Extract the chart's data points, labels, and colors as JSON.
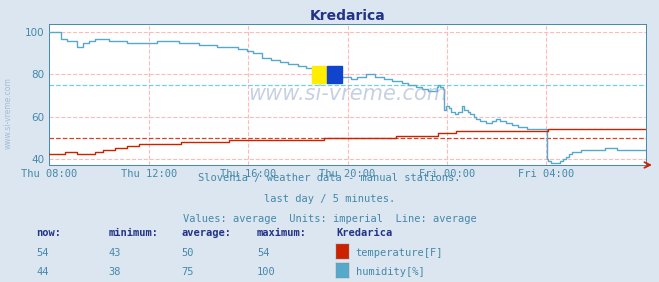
{
  "title": "Kredarica",
  "bg_color": "#dce6f0",
  "plot_bg_color": "#ffffff",
  "grid_color_h": "#ffbbbb",
  "grid_color_v": "#ffbbbb",
  "temp_color": "#cc2200",
  "humid_color": "#55aacc",
  "temp_avg_color": "#cc2200",
  "humid_avg_color": "#55ccdd",
  "ylim": [
    37,
    104
  ],
  "yticks": [
    40,
    60,
    80,
    100
  ],
  "xlabel_color": "#4488aa",
  "title_color": "#223388",
  "subtitle_lines": [
    "Slovenia / weather data - manual stations.",
    "last day / 5 minutes.",
    "Values: average  Units: imperial  Line: average"
  ],
  "xtick_labels": [
    "Thu 08:00",
    "Thu 12:00",
    "Thu 16:00",
    "Thu 20:00",
    "Fri 00:00",
    "Fri 04:00"
  ],
  "xtick_positions": [
    0.0,
    0.1667,
    0.3333,
    0.5,
    0.6667,
    0.8333
  ],
  "temp_avg": 50,
  "humid_avg": 75,
  "watermark": "www.si-vreme.com",
  "legend_title": "Kredarica",
  "legend_items": [
    {
      "label": "temperature[F]",
      "color": "#cc2200"
    },
    {
      "label": "humidity[%]",
      "color": "#55aacc"
    }
  ],
  "stats_headers": [
    "now:",
    "minimum:",
    "average:",
    "maximum:"
  ],
  "stats_temp": [
    "54",
    "43",
    "50",
    "54"
  ],
  "stats_humid": [
    "44",
    "38",
    "75",
    "100"
  ],
  "temp_data": [
    [
      0.0,
      42
    ],
    [
      0.02,
      42
    ],
    [
      0.025,
      43
    ],
    [
      0.04,
      43
    ],
    [
      0.045,
      42
    ],
    [
      0.06,
      42
    ],
    [
      0.075,
      43
    ],
    [
      0.09,
      44
    ],
    [
      0.1,
      44
    ],
    [
      0.11,
      45
    ],
    [
      0.13,
      46
    ],
    [
      0.15,
      47
    ],
    [
      0.17,
      47
    ],
    [
      0.2,
      47
    ],
    [
      0.22,
      48
    ],
    [
      0.26,
      48
    ],
    [
      0.3,
      49
    ],
    [
      0.35,
      49
    ],
    [
      0.4,
      49
    ],
    [
      0.43,
      49
    ],
    [
      0.46,
      50
    ],
    [
      0.5,
      50
    ],
    [
      0.54,
      50
    ],
    [
      0.58,
      51
    ],
    [
      0.62,
      51
    ],
    [
      0.65,
      52
    ],
    [
      0.67,
      52
    ],
    [
      0.68,
      53
    ],
    [
      0.7,
      53
    ],
    [
      0.83,
      53
    ],
    [
      0.835,
      54
    ],
    [
      1.0,
      54
    ]
  ],
  "humid_data": [
    [
      0.0,
      100
    ],
    [
      0.005,
      100
    ],
    [
      0.01,
      100
    ],
    [
      0.02,
      97
    ],
    [
      0.03,
      96
    ],
    [
      0.045,
      93
    ],
    [
      0.055,
      95
    ],
    [
      0.065,
      96
    ],
    [
      0.075,
      97
    ],
    [
      0.09,
      97
    ],
    [
      0.1,
      96
    ],
    [
      0.115,
      96
    ],
    [
      0.13,
      95
    ],
    [
      0.15,
      95
    ],
    [
      0.165,
      95
    ],
    [
      0.18,
      96
    ],
    [
      0.19,
      96
    ],
    [
      0.2,
      96
    ],
    [
      0.215,
      95
    ],
    [
      0.23,
      95
    ],
    [
      0.24,
      95
    ],
    [
      0.25,
      94
    ],
    [
      0.27,
      94
    ],
    [
      0.28,
      93
    ],
    [
      0.3,
      93
    ],
    [
      0.315,
      92
    ],
    [
      0.33,
      91
    ],
    [
      0.34,
      90
    ],
    [
      0.355,
      88
    ],
    [
      0.37,
      87
    ],
    [
      0.385,
      86
    ],
    [
      0.4,
      85
    ],
    [
      0.415,
      84
    ],
    [
      0.43,
      83
    ],
    [
      0.445,
      82
    ],
    [
      0.46,
      81
    ],
    [
      0.47,
      80
    ],
    [
      0.485,
      79
    ],
    [
      0.495,
      79
    ],
    [
      0.505,
      78
    ],
    [
      0.515,
      79
    ],
    [
      0.53,
      80
    ],
    [
      0.545,
      79
    ],
    [
      0.56,
      78
    ],
    [
      0.575,
      77
    ],
    [
      0.59,
      76
    ],
    [
      0.6,
      75
    ],
    [
      0.615,
      74
    ],
    [
      0.625,
      73
    ],
    [
      0.635,
      72
    ],
    [
      0.645,
      72
    ],
    [
      0.648,
      74
    ],
    [
      0.65,
      75
    ],
    [
      0.655,
      74
    ],
    [
      0.658,
      73
    ],
    [
      0.66,
      63
    ],
    [
      0.665,
      65
    ],
    [
      0.668,
      64
    ],
    [
      0.672,
      62
    ],
    [
      0.678,
      61
    ],
    [
      0.685,
      62
    ],
    [
      0.69,
      65
    ],
    [
      0.695,
      63
    ],
    [
      0.7,
      62
    ],
    [
      0.705,
      61
    ],
    [
      0.71,
      60
    ],
    [
      0.715,
      59
    ],
    [
      0.72,
      58
    ],
    [
      0.73,
      57
    ],
    [
      0.74,
      58
    ],
    [
      0.748,
      59
    ],
    [
      0.755,
      58
    ],
    [
      0.765,
      57
    ],
    [
      0.775,
      56
    ],
    [
      0.785,
      55
    ],
    [
      0.795,
      55
    ],
    [
      0.8,
      54
    ],
    [
      0.815,
      54
    ],
    [
      0.825,
      54
    ],
    [
      0.832,
      40
    ],
    [
      0.835,
      39
    ],
    [
      0.84,
      38
    ],
    [
      0.85,
      38
    ],
    [
      0.855,
      39
    ],
    [
      0.86,
      40
    ],
    [
      0.865,
      41
    ],
    [
      0.87,
      42
    ],
    [
      0.875,
      43
    ],
    [
      0.88,
      43
    ],
    [
      0.89,
      44
    ],
    [
      0.9,
      44
    ],
    [
      0.91,
      44
    ],
    [
      0.92,
      44
    ],
    [
      0.93,
      45
    ],
    [
      0.94,
      45
    ],
    [
      0.95,
      44
    ],
    [
      0.96,
      44
    ],
    [
      0.97,
      44
    ],
    [
      0.98,
      44
    ],
    [
      0.99,
      44
    ],
    [
      1.0,
      44
    ]
  ]
}
